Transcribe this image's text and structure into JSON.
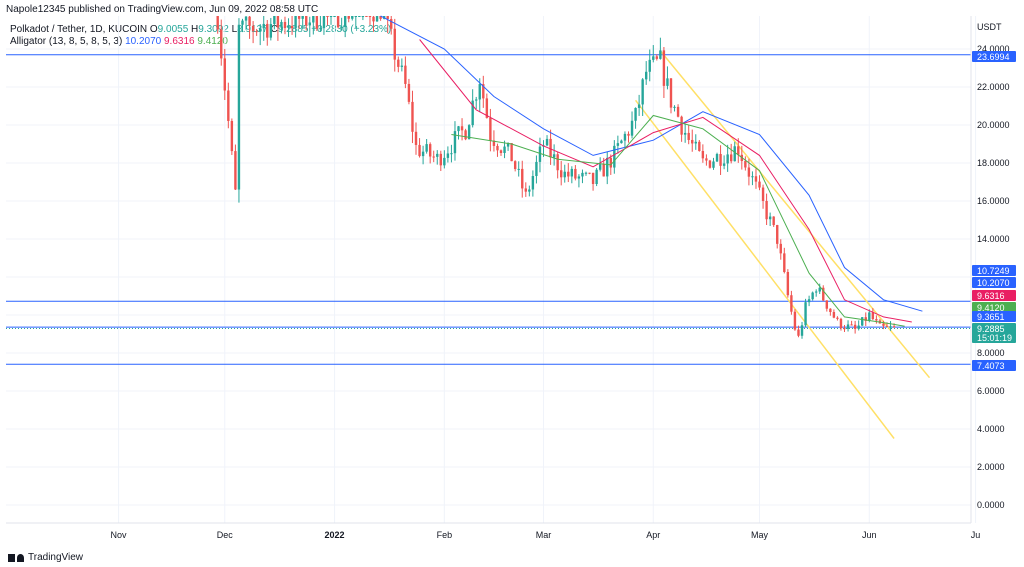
{
  "header": {
    "publisher": "Napole12345 published on TradingView.com, Jun 09, 2022 08:58 UTC"
  },
  "legend": {
    "symbol": "Polkadot / Tether, 1D, KUCOIN",
    "o_label": "O",
    "o_value": "9.0055",
    "h_label": "H",
    "h_value": "9.3092",
    "l_label": "L",
    "l_value": "8.9137",
    "c_label": "C",
    "c_value": "9.2885",
    "change": "+0.2830 (+3.23%)",
    "alligator_label": "Alligator (13, 8, 5, 8, 5, 3)",
    "jaw": "10.2070",
    "teeth": "9.6316",
    "lips": "9.4120"
  },
  "footer": {
    "brand": "TradingView"
  },
  "colors": {
    "up": "#26a69a",
    "down": "#ef5350",
    "jaw": "#2962ff",
    "teeth": "#e91e63",
    "lips": "#4caf50",
    "hline": "#2962ff",
    "channel": "#ffe066"
  },
  "chart_data": {
    "type": "candlestick",
    "currency": "USDT",
    "x_labels": [
      "Nov",
      "Dec",
      "2022",
      "Feb",
      "Mar",
      "Apr",
      "May",
      "Jun",
      "Ju"
    ],
    "ylim": [
      -1,
      25
    ],
    "y_ticks": [
      "24.0000",
      "22.0000",
      "20.0000",
      "18.0000",
      "16.0000",
      "14.0000",
      "8.0000",
      "6.0000",
      "4.0000",
      "2.0000",
      "0.0000"
    ],
    "price_tags": [
      {
        "label": "23.6994",
        "value": 23.6994,
        "color": "#2962ff"
      },
      {
        "label": "10.7249",
        "value": 10.7249,
        "color": "#2962ff"
      },
      {
        "label": "10.2070",
        "value": 10.207,
        "color": "#2962ff"
      },
      {
        "label": "9.6316",
        "value": 9.6316,
        "color": "#e91e63"
      },
      {
        "label": "9.4120",
        "value": 9.412,
        "color": "#4caf50"
      },
      {
        "label": "9.3651",
        "value": 9.3651,
        "color": "#2962ff"
      },
      {
        "label": "9.2885",
        "value": 9.2885,
        "color": "#26a69a"
      },
      {
        "label": "7.4073",
        "value": 7.4073,
        "color": "#2962ff"
      }
    ],
    "countdown": "15:01:19",
    "horizontal_levels": [
      23.6994,
      10.7249,
      9.3651,
      7.4073
    ],
    "channel_lines": [
      {
        "from": [
          "2022-04-03",
          23.9
        ],
        "to": [
          "2022-06-18",
          6.7
        ]
      },
      {
        "from": [
          "2022-03-27",
          21.3
        ],
        "to": [
          "2022-06-08",
          3.5
        ]
      }
    ],
    "close_path": [
      [
        "2021-11-29",
        25.8
      ],
      [
        "2021-12-04",
        16.4
      ],
      [
        "2021-12-05",
        25.0
      ],
      [
        "2021-12-20",
        25.5
      ],
      [
        "2022-01-05",
        26.0
      ],
      [
        "2022-01-14",
        26.2
      ],
      [
        "2022-01-21",
        22.0
      ],
      [
        "2022-01-24",
        18.8
      ],
      [
        "2022-01-30",
        18.2
      ],
      [
        "2022-02-07",
        19.8
      ],
      [
        "2022-02-11",
        22.5
      ],
      [
        "2022-02-14",
        19.5
      ],
      [
        "2022-02-20",
        18.3
      ],
      [
        "2022-02-24",
        16.2
      ],
      [
        "2022-03-01",
        19.0
      ],
      [
        "2022-03-07",
        17.4
      ],
      [
        "2022-03-15",
        17.0
      ],
      [
        "2022-03-21",
        18.4
      ],
      [
        "2022-03-27",
        20.4
      ],
      [
        "2022-03-30",
        22.8
      ],
      [
        "2022-04-03",
        23.3
      ],
      [
        "2022-04-06",
        21.3
      ],
      [
        "2022-04-11",
        19.2
      ],
      [
        "2022-04-15",
        18.0
      ],
      [
        "2022-04-25",
        18.8
      ],
      [
        "2022-04-30",
        16.7
      ],
      [
        "2022-05-06",
        14.0
      ],
      [
        "2022-05-09",
        11.0
      ],
      [
        "2022-05-11",
        9.3
      ],
      [
        "2022-05-12",
        8.8
      ],
      [
        "2022-05-14",
        10.4
      ],
      [
        "2022-05-17",
        11.5
      ],
      [
        "2022-05-23",
        9.6
      ],
      [
        "2022-05-28",
        9.2
      ],
      [
        "2022-06-01",
        10.0
      ],
      [
        "2022-06-04",
        9.3
      ],
      [
        "2022-06-08",
        9.2885
      ]
    ],
    "alligator": {
      "jaw": [
        [
          "2022-01-14",
          27.0
        ],
        [
          "2022-02-01",
          24.0
        ],
        [
          "2022-02-15",
          21.5
        ],
        [
          "2022-03-01",
          19.8
        ],
        [
          "2022-03-15",
          18.4
        ],
        [
          "2022-04-01",
          19.2
        ],
        [
          "2022-04-15",
          20.7
        ],
        [
          "2022-05-01",
          19.5
        ],
        [
          "2022-05-15",
          16.3
        ],
        [
          "2022-05-25",
          12.5
        ],
        [
          "2022-06-05",
          10.8
        ],
        [
          "2022-06-16",
          10.2
        ]
      ],
      "teeth": [
        [
          "2022-01-25",
          24.5
        ],
        [
          "2022-02-10",
          20.8
        ],
        [
          "2022-03-01",
          18.9
        ],
        [
          "2022-03-15",
          17.8
        ],
        [
          "2022-04-01",
          19.6
        ],
        [
          "2022-04-15",
          20.4
        ],
        [
          "2022-05-01",
          18.4
        ],
        [
          "2022-05-15",
          14.5
        ],
        [
          "2022-05-25",
          10.8
        ],
        [
          "2022-06-05",
          9.9
        ],
        [
          "2022-06-13",
          9.63
        ]
      ],
      "lips": [
        [
          "2022-02-03",
          19.5
        ],
        [
          "2022-02-20",
          19.0
        ],
        [
          "2022-03-05",
          18.2
        ],
        [
          "2022-03-20",
          17.9
        ],
        [
          "2022-04-01",
          20.5
        ],
        [
          "2022-04-15",
          19.8
        ],
        [
          "2022-05-01",
          17.6
        ],
        [
          "2022-05-15",
          12.2
        ],
        [
          "2022-05-25",
          9.9
        ],
        [
          "2022-06-05",
          9.6
        ],
        [
          "2022-06-11",
          9.41
        ]
      ]
    }
  }
}
